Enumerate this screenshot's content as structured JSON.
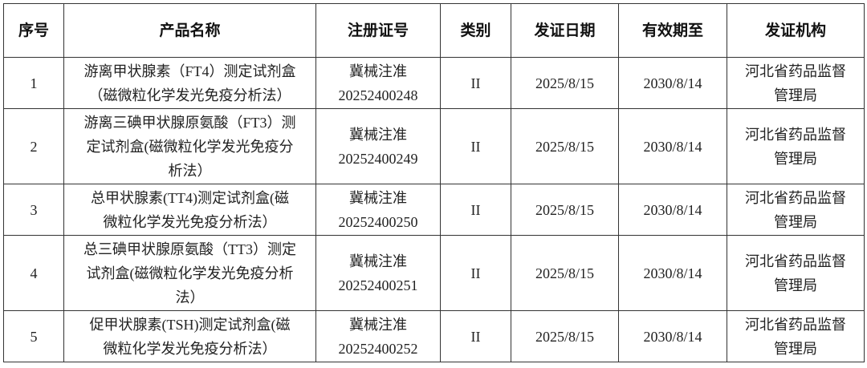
{
  "headers": [
    "序号",
    "产品名称",
    "注册证号",
    "类别",
    "发证日期",
    "有效期至",
    "发证机构"
  ],
  "rows": [
    {
      "no": "1",
      "name": [
        "游离甲状腺素（FT4）测定试剂盒",
        "（磁微粒化学发光免疫分析法）"
      ],
      "reg": [
        "冀械注准",
        "20252400248"
      ],
      "cls": "II",
      "issued": "2025/8/15",
      "expires": "2030/8/14",
      "org": [
        "河北省药品监督",
        "管理局"
      ]
    },
    {
      "no": "2",
      "name": [
        "游离三碘甲状腺原氨酸（FT3）测",
        "定试剂盒(磁微粒化学发光免疫分",
        "析法）"
      ],
      "reg": [
        "冀械注准",
        "20252400249"
      ],
      "cls": "II",
      "issued": "2025/8/15",
      "expires": "2030/8/14",
      "org": [
        "河北省药品监督",
        "管理局"
      ]
    },
    {
      "no": "3",
      "name": [
        "总甲状腺素(TT4)测定试剂盒(磁",
        "微粒化学发光免疫分析法）"
      ],
      "reg": [
        "冀械注准",
        "20252400250"
      ],
      "cls": "II",
      "issued": "2025/8/15",
      "expires": "2030/8/14",
      "org": [
        "河北省药品监督",
        "管理局"
      ]
    },
    {
      "no": "4",
      "name": [
        "总三碘甲状腺原氨酸（TT3）测定",
        "试剂盒(磁微粒化学发光免疫分析",
        "法）"
      ],
      "reg": [
        "冀械注准",
        "20252400251"
      ],
      "cls": "II",
      "issued": "2025/8/15",
      "expires": "2030/8/14",
      "org": [
        "河北省药品监督",
        "管理局"
      ]
    },
    {
      "no": "5",
      "name": [
        "促甲状腺素(TSH)测定试剂盒(磁",
        "微粒化学发光免疫分析法）"
      ],
      "reg": [
        "冀械注准",
        "20252400252"
      ],
      "cls": "II",
      "issued": "2025/8/15",
      "expires": "2030/8/14",
      "org": [
        "河北省药品监督",
        "管理局"
      ]
    }
  ]
}
